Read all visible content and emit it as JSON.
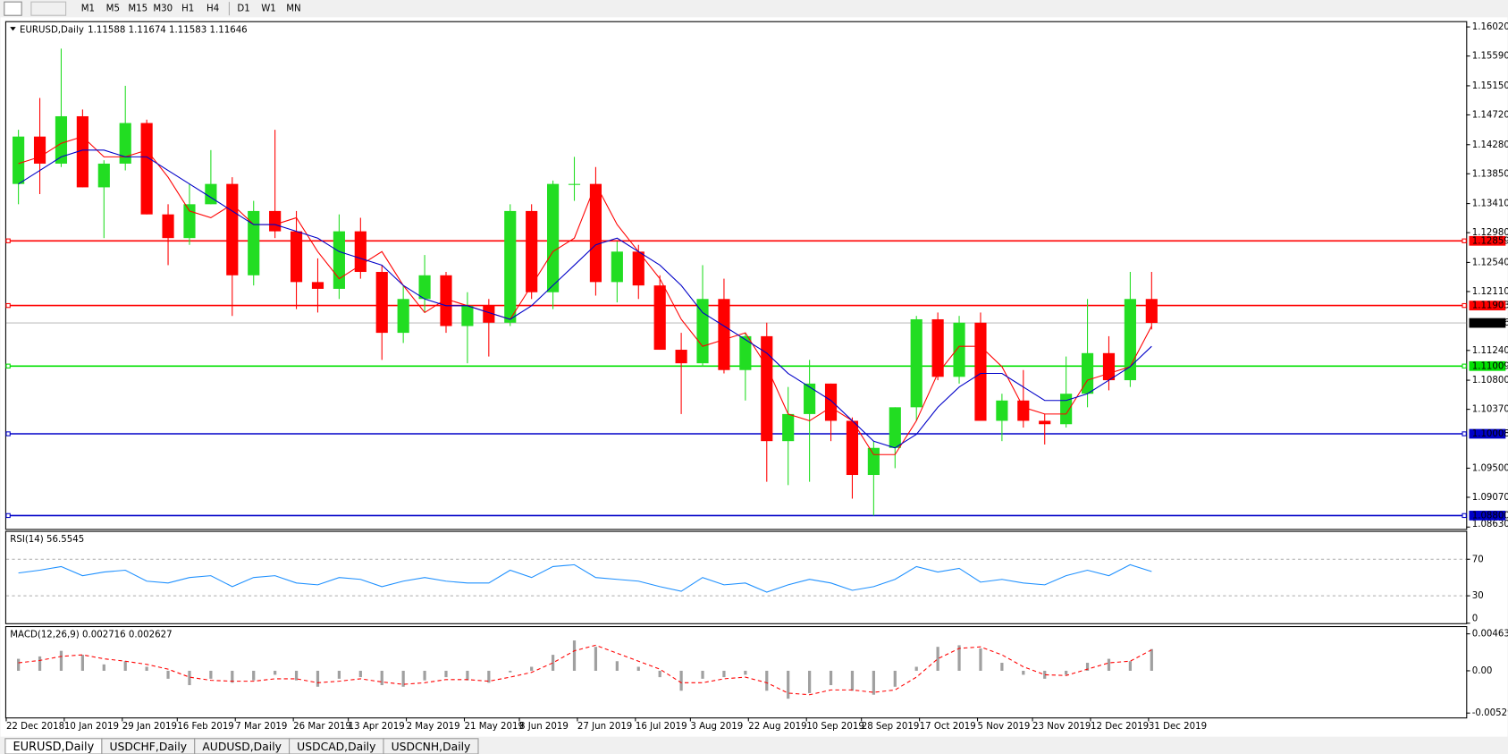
{
  "toolbar": {
    "timeframes": [
      "M1",
      "M5",
      "M15",
      "M30",
      "H1",
      "H4",
      "D1",
      "W1",
      "MN"
    ]
  },
  "tabs": [
    "EURUSD,Daily",
    "USDCHF,Daily",
    "AUDUSD,Daily",
    "USDCAD,Daily",
    "USDCNH,Daily"
  ],
  "chart_data": [
    {
      "type": "candlestick",
      "title": "EURUSD,Daily",
      "ohlc_label": "1.11588 1.11674 1.11583 1.11646",
      "x": [
        "2018-12-24",
        "2018-12-31",
        "2019-01-07",
        "2019-01-14",
        "2019-01-21",
        "2019-01-28",
        "2019-02-04",
        "2019-02-11",
        "2019-02-18",
        "2019-02-25",
        "2019-03-04",
        "2019-03-11",
        "2019-03-18",
        "2019-03-25",
        "2019-04-01",
        "2019-04-08",
        "2019-04-15",
        "2019-04-22",
        "2019-04-29",
        "2019-05-06",
        "2019-05-13",
        "2019-05-20",
        "2019-05-27",
        "2019-06-03",
        "2019-06-10",
        "2019-06-17",
        "2019-06-24",
        "2019-07-01",
        "2019-07-08",
        "2019-07-15",
        "2019-07-22",
        "2019-07-29",
        "2019-08-05",
        "2019-08-12",
        "2019-08-19",
        "2019-08-26",
        "2019-09-02",
        "2019-09-09",
        "2019-09-16",
        "2019-09-23",
        "2019-09-30",
        "2019-10-07",
        "2019-10-14",
        "2019-10-21",
        "2019-10-28",
        "2019-11-04",
        "2019-11-11",
        "2019-11-18",
        "2019-11-25",
        "2019-12-02",
        "2019-12-09",
        "2019-12-16",
        "2019-12-23",
        "2019-12-30"
      ],
      "open": [
        1.137,
        1.144,
        1.14,
        1.147,
        1.1365,
        1.14,
        1.146,
        1.1325,
        1.129,
        1.134,
        1.137,
        1.1235,
        1.133,
        1.13,
        1.1225,
        1.1215,
        1.13,
        1.124,
        1.115,
        1.12,
        1.1235,
        1.116,
        1.119,
        1.1165,
        1.133,
        1.121,
        1.137,
        1.137,
        1.1225,
        1.127,
        1.122,
        1.1125,
        1.1105,
        1.12,
        1.1095,
        1.1145,
        1.099,
        1.103,
        1.1075,
        1.102,
        1.094,
        1.098,
        1.104,
        1.117,
        1.1085,
        1.1165,
        1.102,
        1.105,
        1.102,
        1.1015,
        1.106,
        1.112,
        1.108,
        1.12
      ],
      "high": [
        1.145,
        1.1497,
        1.157,
        1.148,
        1.1405,
        1.1515,
        1.1465,
        1.134,
        1.137,
        1.142,
        1.138,
        1.1345,
        1.145,
        1.133,
        1.126,
        1.1325,
        1.132,
        1.125,
        1.122,
        1.1265,
        1.124,
        1.121,
        1.12,
        1.134,
        1.134,
        1.1375,
        1.141,
        1.1395,
        1.1285,
        1.128,
        1.1235,
        1.115,
        1.125,
        1.123,
        1.115,
        1.1165,
        1.107,
        1.111,
        1.1075,
        1.1025,
        1.099,
        1.104,
        1.1175,
        1.118,
        1.1175,
        1.118,
        1.106,
        1.1095,
        1.103,
        1.1115,
        1.12,
        1.1145,
        1.124,
        1.124
      ],
      "low": [
        1.134,
        1.1355,
        1.1395,
        1.1365,
        1.129,
        1.139,
        1.1325,
        1.125,
        1.128,
        1.134,
        1.1175,
        1.122,
        1.129,
        1.1185,
        1.118,
        1.12,
        1.123,
        1.111,
        1.1135,
        1.118,
        1.115,
        1.1105,
        1.1115,
        1.116,
        1.12,
        1.1185,
        1.1345,
        1.1205,
        1.1195,
        1.12,
        1.1125,
        1.103,
        1.11,
        1.109,
        1.105,
        1.093,
        1.0925,
        1.093,
        1.099,
        1.0905,
        1.088,
        1.095,
        1.102,
        1.108,
        1.1075,
        1.102,
        1.099,
        1.101,
        1.0985,
        1.101,
        1.104,
        1.1065,
        1.107,
        1.1155
      ],
      "close": [
        1.144,
        1.14,
        1.147,
        1.1365,
        1.14,
        1.146,
        1.1325,
        1.129,
        1.134,
        1.137,
        1.1235,
        1.133,
        1.13,
        1.1225,
        1.1215,
        1.13,
        1.124,
        1.115,
        1.12,
        1.1235,
        1.116,
        1.119,
        1.1165,
        1.133,
        1.121,
        1.137,
        1.137,
        1.1225,
        1.127,
        1.122,
        1.1125,
        1.1105,
        1.12,
        1.1095,
        1.1145,
        1.099,
        1.103,
        1.1075,
        1.102,
        1.094,
        1.098,
        1.104,
        1.117,
        1.1085,
        1.1165,
        1.102,
        1.105,
        1.102,
        1.1015,
        1.106,
        1.112,
        1.108,
        1.12,
        1.11646
      ],
      "up_color": "#22dd22",
      "down_color": "#ff0000",
      "overlays": [
        {
          "color": "#ff0000",
          "values": [
            1.14,
            1.141,
            1.143,
            1.144,
            1.141,
            1.141,
            1.142,
            1.138,
            1.133,
            1.132,
            1.134,
            1.131,
            1.131,
            1.132,
            1.127,
            1.123,
            1.125,
            1.127,
            1.122,
            1.118,
            1.12,
            1.119,
            1.118,
            1.117,
            1.122,
            1.127,
            1.129,
            1.137,
            1.131,
            1.127,
            1.123,
            1.117,
            1.113,
            1.114,
            1.115,
            1.11,
            1.103,
            1.102,
            1.104,
            1.102,
            1.097,
            1.097,
            1.102,
            1.109,
            1.113,
            1.113,
            1.11,
            1.104,
            1.103,
            1.103,
            1.108,
            1.109,
            1.11,
            1.116
          ]
        },
        {
          "color": "#0000c8",
          "values": [
            1.137,
            1.139,
            1.141,
            1.142,
            1.142,
            1.141,
            1.141,
            1.139,
            1.137,
            1.135,
            1.133,
            1.131,
            1.131,
            1.13,
            1.129,
            1.127,
            1.126,
            1.125,
            1.122,
            1.12,
            1.119,
            1.119,
            1.118,
            1.117,
            1.119,
            1.122,
            1.125,
            1.128,
            1.129,
            1.127,
            1.125,
            1.122,
            1.118,
            1.116,
            1.114,
            1.112,
            1.109,
            1.107,
            1.105,
            1.102,
            1.099,
            1.098,
            1.1,
            1.104,
            1.107,
            1.109,
            1.109,
            1.107,
            1.105,
            1.105,
            1.106,
            1.108,
            1.11,
            1.113
          ]
        }
      ],
      "levels": [
        {
          "value": 1.12859,
          "label": "1.12859",
          "color": "#ff0000"
        },
        {
          "value": 1.11903,
          "label": "1.11903",
          "color": "#ff0000"
        },
        {
          "value": 1.11009,
          "label": "1.11009",
          "color": "#00e000"
        },
        {
          "value": 1.10008,
          "label": "1.10008",
          "color": "#0000c8"
        },
        {
          "value": 1.088,
          "label": "1.08800",
          "color": "#0000c8"
        }
      ],
      "current_price": {
        "value": 1.11646,
        "label": "1.11646"
      },
      "xlim": [
        "2018-12-22",
        "2020-04-13"
      ],
      "xticks": [
        {
          "value": "2018-12-22",
          "label": "22 Dec 2018"
        },
        {
          "value": "2019-01-10",
          "label": "10 Jan 2019"
        },
        {
          "value": "2019-01-29",
          "label": "29 Jan 2019"
        },
        {
          "value": "2019-02-16",
          "label": "16 Feb 2019"
        },
        {
          "value": "2019-03-07",
          "label": "7 Mar 2019"
        },
        {
          "value": "2019-03-26",
          "label": "26 Mar 2019"
        },
        {
          "value": "2019-04-13",
          "label": "13 Apr 2019"
        },
        {
          "value": "2019-05-02",
          "label": "2 May 2019"
        },
        {
          "value": "2019-05-21",
          "label": "21 May 2019"
        },
        {
          "value": "2019-06-08",
          "label": "8 Jun 2019"
        },
        {
          "value": "2019-06-27",
          "label": "27 Jun 2019"
        },
        {
          "value": "2019-07-16",
          "label": "16 Jul 2019"
        },
        {
          "value": "2019-08-03",
          "label": "3 Aug 2019"
        },
        {
          "value": "2019-08-22",
          "label": "22 Aug 2019"
        },
        {
          "value": "2019-09-10",
          "label": "10 Sep 2019"
        },
        {
          "value": "2019-09-28",
          "label": "28 Sep 2019"
        },
        {
          "value": "2019-10-17",
          "label": "17 Oct 2019"
        },
        {
          "value": "2019-11-05",
          "label": "5 Nov 2019"
        },
        {
          "value": "2019-11-23",
          "label": "23 Nov 2019"
        },
        {
          "value": "2019-12-12",
          "label": "12 Dec 2019"
        },
        {
          "value": "2019-12-31",
          "label": "31 Dec 2019"
        }
      ],
      "ylim": [
        1.08602,
        1.16091
      ],
      "yticks": [
        {
          "value": 1.1602,
          "label": "1.16020"
        },
        {
          "value": 1.1559,
          "label": "1.15590"
        },
        {
          "value": 1.1515,
          "label": "1.15150"
        },
        {
          "value": 1.1472,
          "label": "1.14720"
        },
        {
          "value": 1.1428,
          "label": "1.14280"
        },
        {
          "value": 1.1385,
          "label": "1.13850"
        },
        {
          "value": 1.1341,
          "label": "1.13410"
        },
        {
          "value": 1.1298,
          "label": "1.12980"
        },
        {
          "value": 1.1254,
          "label": "1.12540"
        },
        {
          "value": 1.1211,
          "label": "1.12110"
        },
        {
          "value": 1.1124,
          "label": "1.11240"
        },
        {
          "value": 1.108,
          "label": "1.10800"
        },
        {
          "value": 1.1037,
          "label": "1.10370"
        },
        {
          "value": 1.095,
          "label": "1.09500"
        },
        {
          "value": 1.0907,
          "label": "1.09070"
        },
        {
          "value": 1.0863,
          "label": "1.08630"
        }
      ]
    },
    {
      "type": "line",
      "title": "RSI(14) 56.5545",
      "series": [
        {
          "color": "#1e90ff",
          "values": [
            55,
            58,
            62,
            52,
            56,
            58,
            46,
            44,
            50,
            52,
            40,
            50,
            52,
            44,
            42,
            50,
            48,
            40,
            46,
            50,
            46,
            44,
            44,
            58,
            50,
            62,
            64,
            50,
            48,
            46,
            40,
            35,
            50,
            42,
            44,
            34,
            42,
            48,
            44,
            36,
            40,
            48,
            62,
            56,
            60,
            45,
            48,
            44,
            42,
            52,
            58,
            52,
            64,
            56.5545
          ]
        }
      ],
      "ylim": [
        0,
        100
      ],
      "yticks": [
        70,
        30,
        0
      ]
    },
    {
      "type": "macd",
      "title": "MACD(12,26,9) 0.002716 0.002627",
      "histogram": {
        "color": "#a0a0a0",
        "values": [
          0.0015,
          0.0018,
          0.0025,
          0.002,
          0.0008,
          0.0012,
          0.0005,
          -0.001,
          -0.0018,
          -0.001,
          -0.0015,
          -0.0012,
          -0.0005,
          -0.0012,
          -0.002,
          -0.001,
          -0.0008,
          -0.0018,
          -0.002,
          -0.0012,
          -0.0008,
          -0.0012,
          -0.0015,
          -0.0002,
          0.0005,
          0.002,
          0.0038,
          0.003,
          0.0012,
          0.0005,
          -0.0008,
          -0.0025,
          -0.001,
          -0.0008,
          -0.0005,
          -0.0025,
          -0.0035,
          -0.0028,
          -0.0018,
          -0.0025,
          -0.003,
          -0.002,
          0.0005,
          0.003,
          0.0032,
          0.0028,
          0.001,
          -0.0005,
          -0.001,
          -0.0005,
          0.001,
          0.0015,
          0.0012,
          0.002716
        ]
      },
      "signal": {
        "color": "#ff0000",
        "values": [
          0.001,
          0.0013,
          0.0018,
          0.002,
          0.0015,
          0.0012,
          0.0008,
          0.0002,
          -0.0008,
          -0.0012,
          -0.0013,
          -0.0013,
          -0.001,
          -0.001,
          -0.0015,
          -0.0013,
          -0.001,
          -0.0014,
          -0.0017,
          -0.0015,
          -0.0011,
          -0.0011,
          -0.0013,
          -0.0008,
          -0.0002,
          0.001,
          0.0025,
          0.0032,
          0.0022,
          0.0012,
          0.0002,
          -0.0015,
          -0.0015,
          -0.001,
          -0.0008,
          -0.0015,
          -0.0028,
          -0.003,
          -0.0024,
          -0.0024,
          -0.0027,
          -0.0024,
          -0.0008,
          0.0015,
          0.0028,
          0.003,
          0.002,
          0.0005,
          -0.0005,
          -0.0006,
          0.0002,
          0.001,
          0.0012,
          0.002627
        ]
      },
      "ylim": [
        -0.00585,
        0.00548
      ],
      "yticks": [
        0.00463,
        {
          "value": 0,
          "label": "0.00"
        },
        -0.005299
      ]
    }
  ]
}
